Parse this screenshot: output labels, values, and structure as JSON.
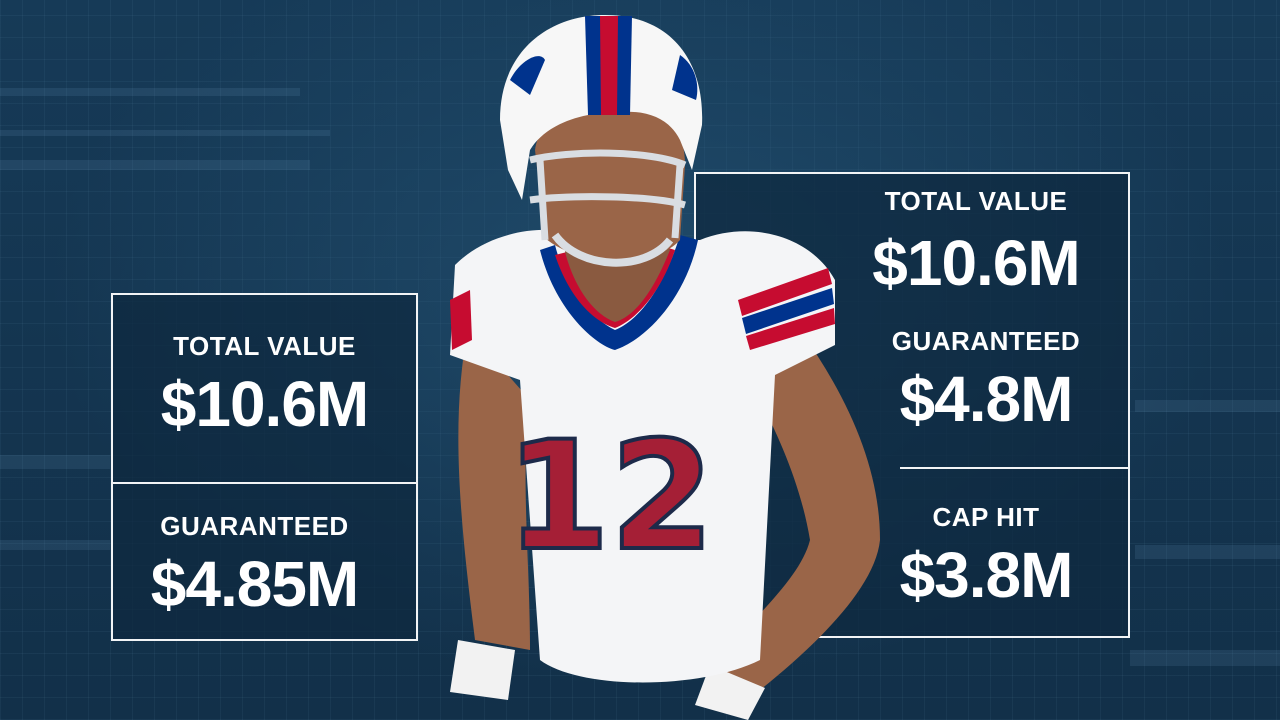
{
  "left_card": {
    "total_value_label": "TOTAL VALUE",
    "total_value": "$10.6M",
    "guaranteed_label": "GUARANTEED",
    "guaranteed": "$4.85M"
  },
  "right_card": {
    "total_value_label": "TOTAL VALUE",
    "total_value": "$10.6M",
    "guaranteed_label": "GUARANTEED",
    "guaranteed": "$4.8M",
    "cap_hit_label": "CAP HIT",
    "cap_hit": "$3.8M"
  },
  "player": {
    "jersey_number": "12",
    "team_colors": {
      "primary": "#00338d",
      "secondary": "#c60c30",
      "jersey": "#f4f5f7"
    }
  },
  "colors": {
    "background": "#13324c",
    "panel_border": "#f2f4f6",
    "text": "#ffffff"
  }
}
